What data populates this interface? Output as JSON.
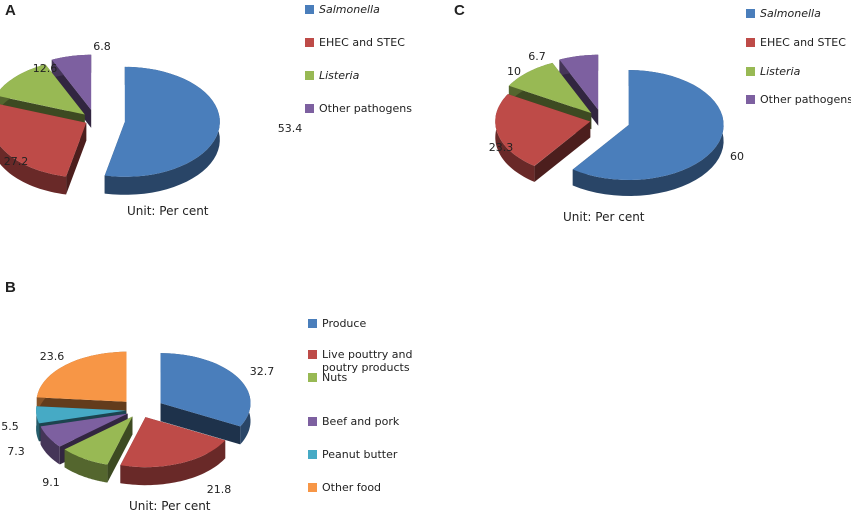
{
  "chart_data": [
    {
      "panel": "A",
      "type": "pie",
      "subtitle": "Unit: Per cent",
      "labels": [
        "Salmonella",
        "EHEC and STEC",
        "Listeria",
        "Other pathogens"
      ],
      "italic": [
        true,
        false,
        true,
        false
      ],
      "values": [
        53.4,
        27.2,
        12.6,
        6.8
      ],
      "colors": [
        "#4a7ebb",
        "#be4b48",
        "#98b954",
        "#7d60a0"
      ],
      "legend": "right"
    },
    {
      "panel": "B",
      "type": "pie",
      "subtitle": "Unit: Per cent",
      "labels": [
        "Produce",
        "Live pouttry and poutry products",
        "Nuts",
        "Beef and pork",
        "Peanut butter",
        "Other food"
      ],
      "italic": [
        false,
        false,
        false,
        false,
        false,
        false
      ],
      "values": [
        32.7,
        21.8,
        9.1,
        7.3,
        5.5,
        23.6
      ],
      "colors": [
        "#4a7ebb",
        "#be4b48",
        "#98b954",
        "#7d60a0",
        "#46aac5",
        "#f79646"
      ],
      "legend": "right"
    },
    {
      "panel": "C",
      "type": "pie",
      "subtitle": "Unit: Per cent",
      "labels": [
        "Salmonella",
        "EHEC and STEC",
        "Listeria",
        "Other pathogens"
      ],
      "italic": [
        true,
        false,
        true,
        false
      ],
      "values": [
        60,
        23.3,
        10,
        6.7
      ],
      "colors": [
        "#4a7ebb",
        "#be4b48",
        "#98b954",
        "#7d60a0"
      ],
      "legend": "right"
    }
  ]
}
